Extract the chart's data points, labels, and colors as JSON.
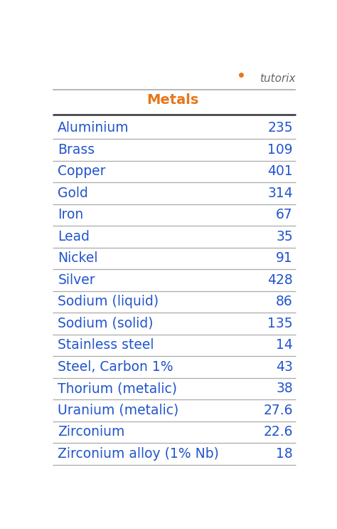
{
  "title": "Metals",
  "title_color": "#E8761A",
  "row_color": "#2255CC",
  "bg_color": "#FFFFFF",
  "line_color_light": "#AAAAAA",
  "line_color_dark": "#333333",
  "rows": [
    [
      "Aluminium",
      "235"
    ],
    [
      "Brass",
      "109"
    ],
    [
      "Copper",
      "401"
    ],
    [
      "Gold",
      "314"
    ],
    [
      "Iron",
      "67"
    ],
    [
      "Lead",
      "35"
    ],
    [
      "Nickel",
      "91"
    ],
    [
      "Silver",
      "428"
    ],
    [
      "Sodium (liquid)",
      "86"
    ],
    [
      "Sodium (solid)",
      "135"
    ],
    [
      "Stainless steel",
      "14"
    ],
    [
      "Steel, Carbon 1%",
      "43"
    ],
    [
      "Thorium (metalic)",
      "38"
    ],
    [
      "Uranium (metalic)",
      "27.6"
    ],
    [
      "Zirconium",
      "22.6"
    ],
    [
      "Zirconium alloy (1% Nb)",
      "18"
    ]
  ],
  "figsize": [
    4.74,
    7.43
  ],
  "dpi": 100,
  "font_size": 13.5,
  "title_font_size": 14,
  "logo_color_main": "#666666",
  "logo_color_accent": "#E8761A"
}
